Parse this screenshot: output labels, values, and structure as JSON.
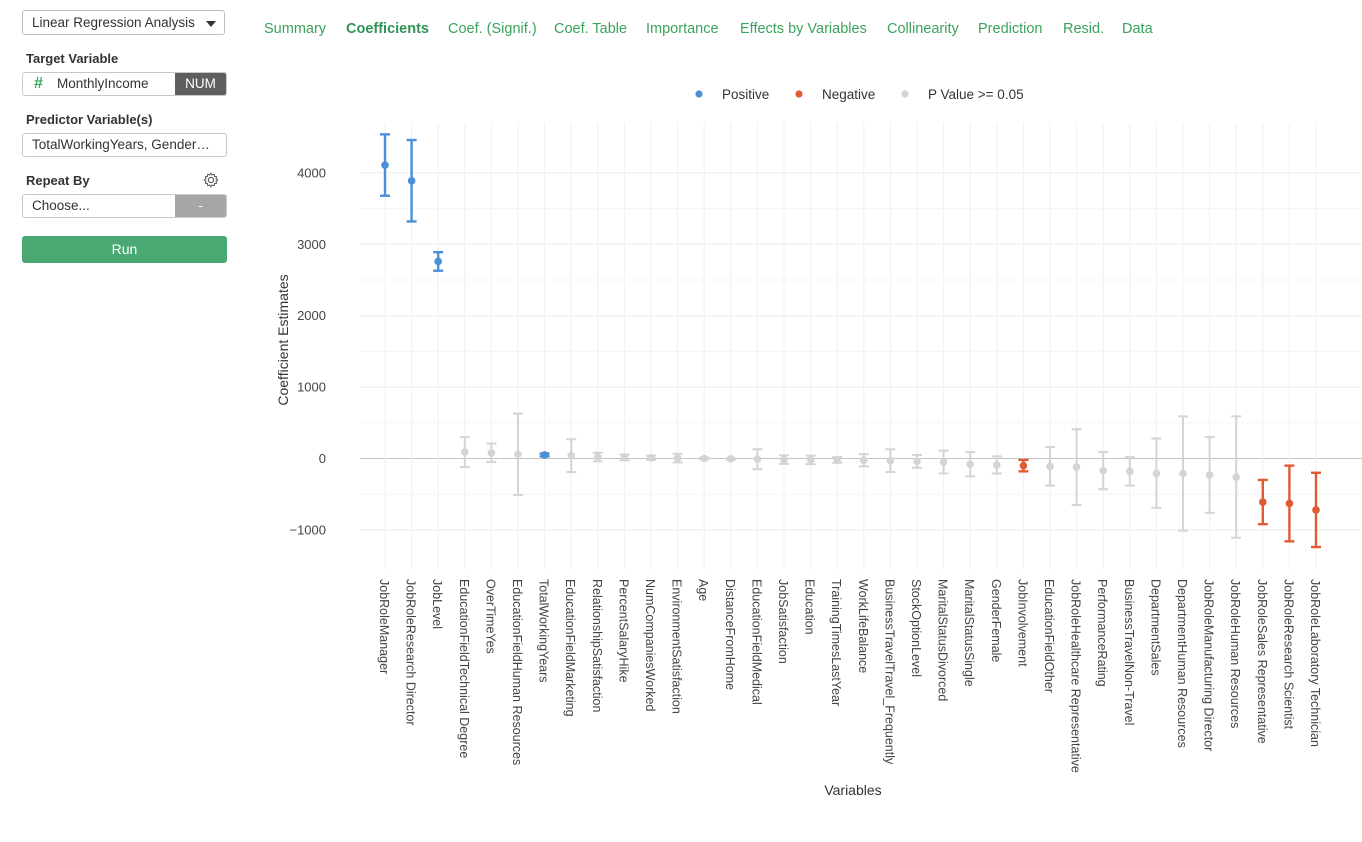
{
  "sidebar": {
    "analysis_select": "Linear Regression Analysis",
    "target_label": "Target Variable",
    "target_value": "MonthlyIncome",
    "target_type_badge": "NUM",
    "predictors_label": "Predictor Variable(s)",
    "predictors_value": "TotalWorkingYears, Gender…",
    "repeat_label": "Repeat By",
    "repeat_placeholder": "Choose...",
    "repeat_badge": "-",
    "run_label": "Run"
  },
  "tabs": [
    {
      "label": "Summary",
      "active": false
    },
    {
      "label": "Coefficients",
      "active": true
    },
    {
      "label": "Coef. (Signif.)",
      "active": false
    },
    {
      "label": "Coef. Table",
      "active": false
    },
    {
      "label": "Importance",
      "active": false
    },
    {
      "label": "Effects by Variables",
      "active": false
    },
    {
      "label": "Collinearity",
      "active": false
    },
    {
      "label": "Prediction",
      "active": false
    },
    {
      "label": "Resid.",
      "active": false
    },
    {
      "label": "Data",
      "active": false
    }
  ],
  "colors": {
    "positive": "#4a90d9",
    "negative": "#e05a33",
    "not_significant": "#d4d4d4",
    "accent": "#3aa35b"
  },
  "chart_data": {
    "type": "scatter",
    "xlabel": "Variables",
    "ylabel": "Coefficient Estimates",
    "ylim": [
      -1550,
      4700
    ],
    "yticks": [
      -1000,
      0,
      1000,
      2000,
      3000,
      4000
    ],
    "legend": [
      "Positive",
      "Negative",
      "P Value >= 0.05"
    ],
    "legend_position": "top",
    "points": [
      {
        "name": "JobRoleManager",
        "estimate": 4110,
        "lower": 3680,
        "upper": 4540,
        "group": "Positive"
      },
      {
        "name": "JobRoleResearch Director",
        "estimate": 3890,
        "lower": 3320,
        "upper": 4460,
        "group": "Positive"
      },
      {
        "name": "JobLevel",
        "estimate": 2760,
        "lower": 2630,
        "upper": 2890,
        "group": "Positive"
      },
      {
        "name": "EducationFieldTechnical Degree",
        "estimate": 90,
        "lower": -120,
        "upper": 300,
        "group": "P Value >= 0.05"
      },
      {
        "name": "OverTimeYes",
        "estimate": 80,
        "lower": -50,
        "upper": 210,
        "group": "P Value >= 0.05"
      },
      {
        "name": "EducationFieldHuman Resources",
        "estimate": 60,
        "lower": -510,
        "upper": 630,
        "group": "P Value >= 0.05"
      },
      {
        "name": "TotalWorkingYears",
        "estimate": 50,
        "lower": 30,
        "upper": 70,
        "group": "Positive"
      },
      {
        "name": "EducationFieldMarketing",
        "estimate": 40,
        "lower": -190,
        "upper": 270,
        "group": "P Value >= 0.05"
      },
      {
        "name": "RelationshipSatisfaction",
        "estimate": 20,
        "lower": -40,
        "upper": 80,
        "group": "P Value >= 0.05"
      },
      {
        "name": "PercentSalaryHike",
        "estimate": 15,
        "lower": -25,
        "upper": 55,
        "group": "P Value >= 0.05"
      },
      {
        "name": "NumCompaniesWorked",
        "estimate": 10,
        "lower": -20,
        "upper": 40,
        "group": "P Value >= 0.05"
      },
      {
        "name": "EnvironmentSatisfaction",
        "estimate": 5,
        "lower": -55,
        "upper": 65,
        "group": "P Value >= 0.05"
      },
      {
        "name": "Age",
        "estimate": 0,
        "lower": -15,
        "upper": 15,
        "group": "P Value >= 0.05"
      },
      {
        "name": "DistanceFromHome",
        "estimate": -5,
        "lower": -15,
        "upper": 5,
        "group": "P Value >= 0.05"
      },
      {
        "name": "EducationFieldMedical",
        "estimate": -10,
        "lower": -150,
        "upper": 130,
        "group": "P Value >= 0.05"
      },
      {
        "name": "JobSatisfaction",
        "estimate": -15,
        "lower": -75,
        "upper": 45,
        "group": "P Value >= 0.05"
      },
      {
        "name": "Education",
        "estimate": -20,
        "lower": -80,
        "upper": 40,
        "group": "P Value >= 0.05"
      },
      {
        "name": "TrainingTimesLastYear",
        "estimate": -20,
        "lower": -60,
        "upper": 20,
        "group": "P Value >= 0.05"
      },
      {
        "name": "WorkLifeBalance",
        "estimate": -25,
        "lower": -110,
        "upper": 60,
        "group": "P Value >= 0.05"
      },
      {
        "name": "BusinessTravelTravel_Frequently",
        "estimate": -30,
        "lower": -190,
        "upper": 130,
        "group": "P Value >= 0.05"
      },
      {
        "name": "StockOptionLevel",
        "estimate": -40,
        "lower": -130,
        "upper": 50,
        "group": "P Value >= 0.05"
      },
      {
        "name": "MaritalStatusDivorced",
        "estimate": -50,
        "lower": -210,
        "upper": 110,
        "group": "P Value >= 0.05"
      },
      {
        "name": "MaritalStatusSingle",
        "estimate": -80,
        "lower": -250,
        "upper": 90,
        "group": "P Value >= 0.05"
      },
      {
        "name": "GenderFemale",
        "estimate": -90,
        "lower": -210,
        "upper": 30,
        "group": "P Value >= 0.05"
      },
      {
        "name": "JobInvolvement",
        "estimate": -100,
        "lower": -180,
        "upper": -20,
        "group": "Negative"
      },
      {
        "name": "EducationFieldOther",
        "estimate": -110,
        "lower": -380,
        "upper": 160,
        "group": "P Value >= 0.05"
      },
      {
        "name": "JobRoleHealthcare Representative",
        "estimate": -120,
        "lower": -650,
        "upper": 410,
        "group": "P Value >= 0.05"
      },
      {
        "name": "PerformanceRating",
        "estimate": -170,
        "lower": -430,
        "upper": 90,
        "group": "P Value >= 0.05"
      },
      {
        "name": "BusinessTravelNon-Travel",
        "estimate": -180,
        "lower": -380,
        "upper": 20,
        "group": "P Value >= 0.05"
      },
      {
        "name": "DepartmentSales",
        "estimate": -210,
        "lower": -690,
        "upper": 280,
        "group": "P Value >= 0.05"
      },
      {
        "name": "DepartmentHuman Resources",
        "estimate": -210,
        "lower": -1010,
        "upper": 590,
        "group": "P Value >= 0.05"
      },
      {
        "name": "JobRoleManufacturing Director",
        "estimate": -230,
        "lower": -760,
        "upper": 300,
        "group": "P Value >= 0.05"
      },
      {
        "name": "JobRoleHuman Resources",
        "estimate": -260,
        "lower": -1110,
        "upper": 590,
        "group": "P Value >= 0.05"
      },
      {
        "name": "JobRoleSales Representative",
        "estimate": -610,
        "lower": -920,
        "upper": -300,
        "group": "Negative"
      },
      {
        "name": "JobRoleResearch Scientist",
        "estimate": -630,
        "lower": -1160,
        "upper": -100,
        "group": "Negative"
      },
      {
        "name": "JobRoleLaboratory Technician",
        "estimate": -720,
        "lower": -1240,
        "upper": -200,
        "group": "Negative"
      }
    ]
  }
}
